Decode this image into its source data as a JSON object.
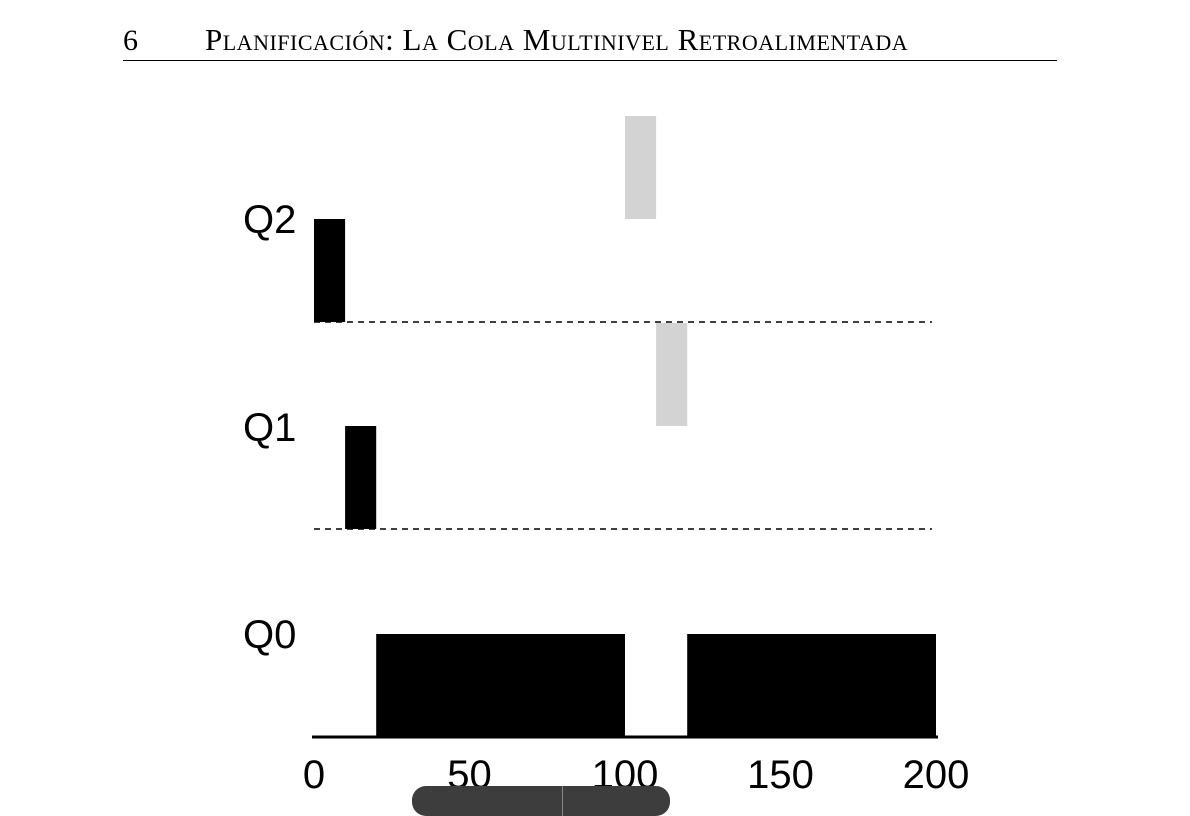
{
  "header": {
    "page_number": "6",
    "title": "Planificación: La Cola Multinivel Retroalimentada"
  },
  "chart_data": {
    "type": "bar",
    "title": "",
    "xlabel": "",
    "ylabel": "",
    "xlim": [
      0,
      200
    ],
    "x_ticks": [
      0,
      50,
      100,
      150,
      200
    ],
    "queues": [
      "Q0",
      "Q1",
      "Q2"
    ],
    "grid": false,
    "series": [
      {
        "color": "#000000",
        "segments": [
          {
            "queue": "Q2",
            "start": 0,
            "end": 10
          },
          {
            "queue": "Q1",
            "start": 10,
            "end": 20
          },
          {
            "queue": "Q0",
            "start": 20,
            "end": 100
          },
          {
            "queue": "Q0",
            "start": 120,
            "end": 200
          }
        ]
      },
      {
        "color": "#d3d3d3",
        "segments": [
          {
            "queue": "Q2",
            "start": 100,
            "end": 110
          },
          {
            "queue": "Q1",
            "start": 110,
            "end": 120
          }
        ]
      }
    ]
  }
}
